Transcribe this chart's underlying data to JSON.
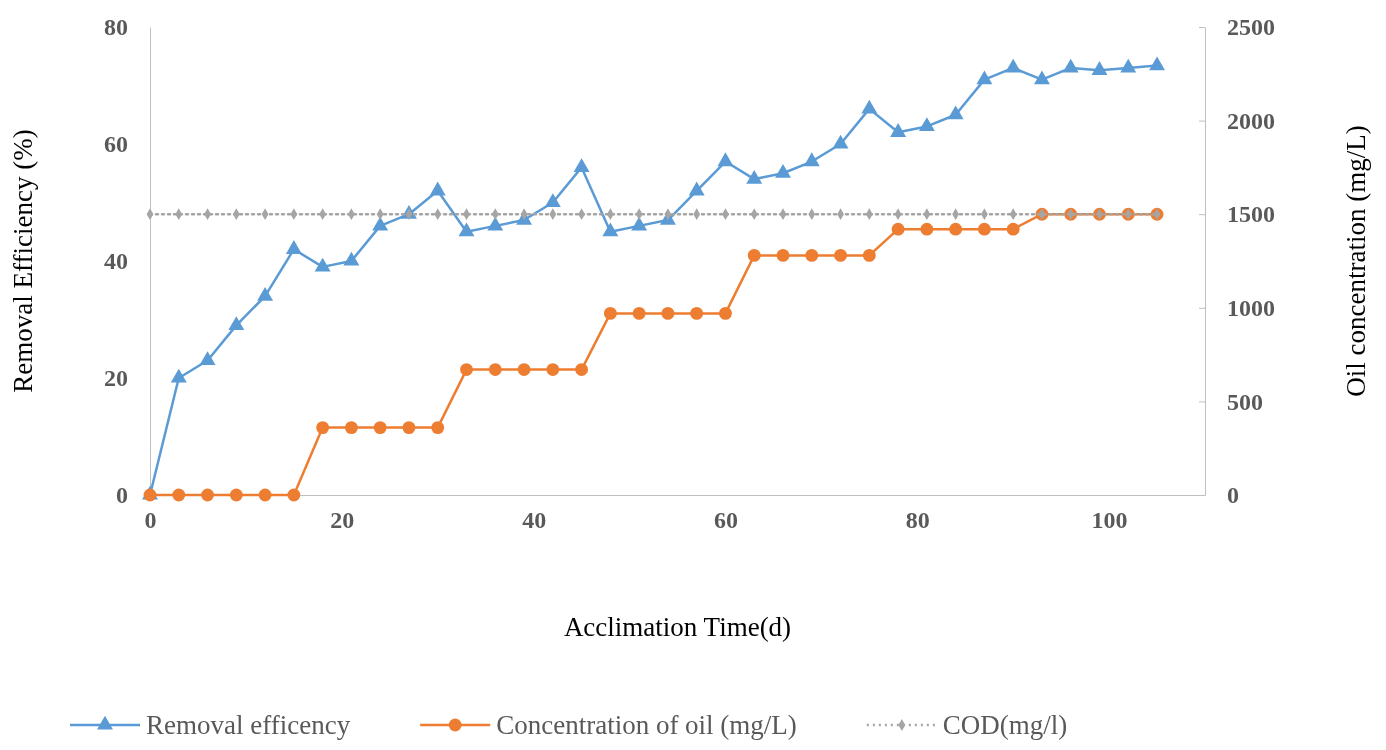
{
  "chart_data": {
    "type": "line",
    "x": [
      0,
      3,
      6,
      9,
      12,
      15,
      18,
      21,
      24,
      27,
      30,
      33,
      36,
      39,
      42,
      45,
      48,
      51,
      54,
      57,
      60,
      63,
      66,
      69,
      72,
      75,
      78,
      81,
      84,
      87,
      90,
      93,
      96,
      99,
      102,
      105
    ],
    "xlabel": "Acclimation Time(d)",
    "ylabel": "Removal Efficiency (%)",
    "y2label": "Oil concentration (mg/L)",
    "xlim": [
      0,
      110
    ],
    "xticks": [
      0,
      20,
      40,
      60,
      80,
      100
    ],
    "ylim": [
      0,
      80
    ],
    "yticks": [
      0,
      20,
      40,
      60,
      80
    ],
    "y2lim": [
      0,
      2500
    ],
    "y2ticks": [
      0,
      500,
      1000,
      1500,
      2000,
      2500
    ],
    "grid": false,
    "legend": "bottom",
    "series": [
      {
        "name": "Removal efficency",
        "color": "#5b9bd5",
        "marker": "triangle",
        "line_style": "solid",
        "values": [
          0,
          20,
          23,
          29,
          34,
          42,
          39,
          40,
          46,
          48,
          52,
          45,
          46,
          47,
          50,
          56,
          45,
          46,
          47,
          52,
          57,
          54,
          55,
          57,
          60,
          66,
          62,
          63,
          65,
          71,
          73,
          71,
          73,
          72.6,
          73,
          73.4
        ]
      },
      {
        "name": "Concentration of oil (mg/L)",
        "color": "#ed7d31",
        "marker": "circle",
        "line_style": "solid",
        "axis": "y2",
        "values": [
          0,
          0,
          0,
          0,
          0,
          0,
          360,
          360,
          360,
          360,
          360,
          670,
          670,
          670,
          670,
          670,
          970,
          970,
          970,
          970,
          970,
          1280,
          1280,
          1280,
          1280,
          1280,
          1420,
          1420,
          1420,
          1420,
          1420,
          1500,
          1500,
          1500,
          1500,
          1500
        ]
      },
      {
        "name": "COD(mg/l)",
        "color": "#a5a5a5",
        "marker": "diamond",
        "line_style": "dotted",
        "axis": "y2",
        "values": [
          1500,
          1500,
          1500,
          1500,
          1500,
          1500,
          1500,
          1500,
          1500,
          1500,
          1500,
          1500,
          1500,
          1500,
          1500,
          1500,
          1500,
          1500,
          1500,
          1500,
          1500,
          1500,
          1500,
          1500,
          1500,
          1500,
          1500,
          1500,
          1500,
          1500,
          1500,
          1500,
          1500,
          1500,
          1500,
          1500
        ]
      }
    ]
  }
}
